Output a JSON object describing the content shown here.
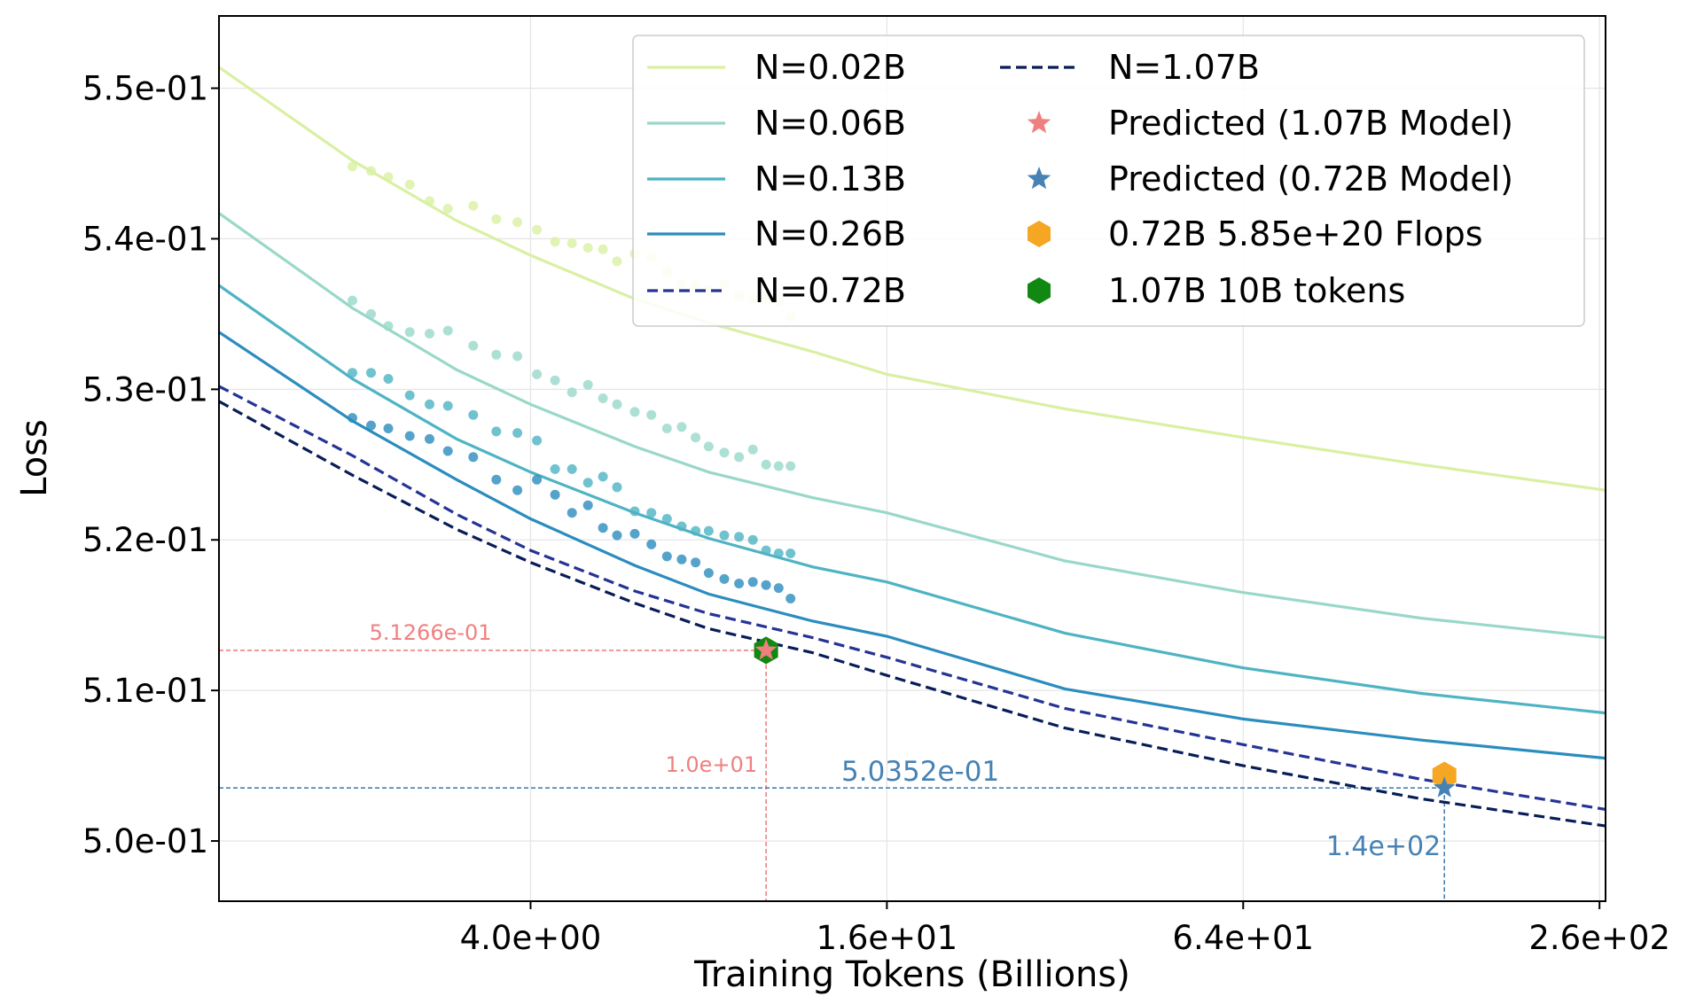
{
  "chart_data": {
    "type": "line",
    "xlabel": "Training Tokens (Billions)",
    "ylabel": "Loss",
    "x_scale": "log",
    "xlim": [
      1.19,
      262.1
    ],
    "ylim": [
      0.496,
      0.5548
    ],
    "x_ticks": [
      {
        "value": 4.0,
        "label": "4.0e+00"
      },
      {
        "value": 16.0,
        "label": "1.6e+01"
      },
      {
        "value": 64.0,
        "label": "6.4e+01"
      },
      {
        "value": 256.0,
        "label": "2.6e+02"
      }
    ],
    "y_ticks": [
      {
        "value": 0.5,
        "label": "5.0e-01"
      },
      {
        "value": 0.51,
        "label": "5.1e-01"
      },
      {
        "value": 0.52,
        "label": "5.2e-01"
      },
      {
        "value": 0.53,
        "label": "5.3e-01"
      },
      {
        "value": 0.54,
        "label": "5.4e-01"
      },
      {
        "value": 0.55,
        "label": "5.5e-01"
      }
    ],
    "grid": true,
    "legend_position": "top-right",
    "series": [
      {
        "name": "N=0.02B",
        "style": "solid",
        "color": "#d9f0a3",
        "fit_x": [
          1.19,
          2.0,
          3.0,
          4.0,
          6.0,
          8.0,
          12.0,
          16.0,
          32.0,
          64.0,
          128.0,
          262.1
        ],
        "fit_y": [
          0.5514,
          0.5452,
          0.5412,
          0.5389,
          0.536,
          0.5344,
          0.5325,
          0.531,
          0.5287,
          0.5268,
          0.525,
          0.5233
        ],
        "points_x": [
          2.0,
          2.15,
          2.3,
          2.5,
          2.7,
          2.9,
          3.2,
          3.5,
          3.8,
          4.1,
          4.4,
          4.7,
          5.0,
          5.3,
          5.6,
          6.0,
          6.4,
          6.8,
          7.2,
          7.6,
          8.0,
          8.5,
          9.0,
          9.5,
          10.0,
          10.5,
          11.0
        ],
        "points_y": [
          0.5448,
          0.5445,
          0.5441,
          0.5436,
          0.5425,
          0.542,
          0.5422,
          0.5413,
          0.5411,
          0.5406,
          0.5398,
          0.5397,
          0.5394,
          0.5393,
          0.5385,
          0.539,
          0.5388,
          0.5378,
          0.537,
          0.5369,
          0.5366,
          0.537,
          0.5362,
          0.536,
          0.5361,
          0.5358,
          0.5348
        ]
      },
      {
        "name": "N=0.06B",
        "style": "solid",
        "color": "#99d8c9",
        "fit_x": [
          1.19,
          2.0,
          3.0,
          4.0,
          6.0,
          8.0,
          12.0,
          16.0,
          32.0,
          64.0,
          128.0,
          262.1
        ],
        "fit_y": [
          0.5417,
          0.5354,
          0.5313,
          0.529,
          0.5262,
          0.5245,
          0.5228,
          0.5218,
          0.5186,
          0.5165,
          0.5148,
          0.5135
        ],
        "points_x": [
          2.0,
          2.15,
          2.3,
          2.5,
          2.7,
          2.9,
          3.2,
          3.5,
          3.8,
          4.1,
          4.4,
          4.7,
          5.0,
          5.3,
          5.6,
          6.0,
          6.4,
          6.8,
          7.2,
          7.6,
          8.0,
          8.5,
          9.0,
          9.5,
          10.0,
          10.5,
          11.0
        ],
        "points_y": [
          0.5359,
          0.535,
          0.5342,
          0.5338,
          0.5337,
          0.5339,
          0.5329,
          0.5323,
          0.5322,
          0.531,
          0.5306,
          0.5298,
          0.5303,
          0.5294,
          0.529,
          0.5285,
          0.5283,
          0.5274,
          0.5275,
          0.5268,
          0.5262,
          0.5258,
          0.5255,
          0.526,
          0.525,
          0.5249,
          0.5249
        ]
      },
      {
        "name": "N=0.13B",
        "style": "solid",
        "color": "#4eb3c3",
        "fit_x": [
          1.19,
          2.0,
          3.0,
          4.0,
          6.0,
          8.0,
          12.0,
          16.0,
          32.0,
          64.0,
          128.0,
          262.1
        ],
        "fit_y": [
          0.5369,
          0.5307,
          0.5267,
          0.5245,
          0.5218,
          0.5201,
          0.5182,
          0.5172,
          0.5138,
          0.5115,
          0.5098,
          0.5085
        ],
        "points_x": [
          2.0,
          2.15,
          2.3,
          2.5,
          2.7,
          2.9,
          3.2,
          3.5,
          3.8,
          4.1,
          4.4,
          4.7,
          5.0,
          5.3,
          5.6,
          6.0,
          6.4,
          6.8,
          7.2,
          7.6,
          8.0,
          8.5,
          9.0,
          9.5,
          10.0,
          10.5,
          11.0
        ],
        "points_y": [
          0.5311,
          0.5311,
          0.5307,
          0.5296,
          0.529,
          0.5289,
          0.5283,
          0.5272,
          0.5271,
          0.5266,
          0.5247,
          0.5247,
          0.5238,
          0.5242,
          0.5235,
          0.5219,
          0.5218,
          0.5214,
          0.5209,
          0.5206,
          0.5206,
          0.5203,
          0.5202,
          0.52,
          0.5193,
          0.5191,
          0.5191
        ]
      },
      {
        "name": "N=0.26B",
        "style": "solid",
        "color": "#2b8cbe",
        "fit_x": [
          1.19,
          2.0,
          3.0,
          4.0,
          6.0,
          8.0,
          12.0,
          16.0,
          32.0,
          64.0,
          128.0,
          262.1
        ],
        "fit_y": [
          0.5338,
          0.5279,
          0.524,
          0.5214,
          0.5183,
          0.5164,
          0.5146,
          0.5136,
          0.5101,
          0.5081,
          0.5067,
          0.5055
        ],
        "points_x": [
          2.0,
          2.15,
          2.3,
          2.5,
          2.7,
          2.9,
          3.2,
          3.5,
          3.8,
          4.1,
          4.4,
          4.7,
          5.0,
          5.3,
          5.6,
          6.0,
          6.4,
          6.8,
          7.2,
          7.6,
          8.0,
          8.5,
          9.0,
          9.5,
          10.0,
          10.5,
          11.0
        ],
        "points_y": [
          0.5281,
          0.5276,
          0.5274,
          0.5269,
          0.5267,
          0.5259,
          0.5255,
          0.524,
          0.5233,
          0.524,
          0.523,
          0.5218,
          0.5223,
          0.5208,
          0.5203,
          0.5204,
          0.5197,
          0.5189,
          0.5187,
          0.5185,
          0.5178,
          0.5174,
          0.5171,
          0.5172,
          0.517,
          0.5168,
          0.5161
        ]
      },
      {
        "name": "N=0.72B",
        "style": "dashed",
        "color": "#253494",
        "fit_x": [
          1.19,
          2.0,
          3.0,
          4.0,
          6.0,
          8.0,
          12.0,
          16.0,
          32.0,
          64.0,
          128.0,
          262.1
        ],
        "fit_y": [
          0.5302,
          0.5256,
          0.5217,
          0.5193,
          0.5166,
          0.5151,
          0.5135,
          0.5122,
          0.5088,
          0.5064,
          0.5041,
          0.5021
        ]
      },
      {
        "name": "N=1.07B",
        "style": "dashed",
        "color": "#081d58",
        "fit_x": [
          1.19,
          2.0,
          3.0,
          4.0,
          6.0,
          8.0,
          12.0,
          16.0,
          32.0,
          64.0,
          128.0,
          262.1
        ],
        "fit_y": [
          0.5292,
          0.5243,
          0.5207,
          0.5185,
          0.5158,
          0.5141,
          0.5125,
          0.511,
          0.5075,
          0.505,
          0.5028,
          0.501
        ]
      }
    ],
    "markers": [
      {
        "name": "Predicted (1.07B Model)",
        "shape": "star",
        "color": "#f08080",
        "x": 10.0,
        "y": 0.51266
      },
      {
        "name": "Predicted (0.72B Model)",
        "shape": "star",
        "color": "#4682b4",
        "x": 140.0,
        "y": 0.50352
      },
      {
        "name": "0.72B 5.85e+20 Flops",
        "shape": "hexagon",
        "color": "#f5a623",
        "x": 140.0,
        "y": 0.50435
      },
      {
        "name": "1.07B 10B tokens",
        "shape": "hexagon",
        "color": "#118811",
        "x": 10.0,
        "y": 0.51266
      }
    ],
    "annotations": [
      {
        "text": "5.1266e-01",
        "color": "#f08080",
        "x": 10.0,
        "y": 0.51266,
        "label_kind": "y"
      },
      {
        "text": "1.0e+01",
        "color": "#f08080",
        "x": 10.0,
        "y": 0.51266,
        "label_kind": "x"
      },
      {
        "text": "5.0352e-01",
        "color": "#4682b4",
        "x": 140.0,
        "y": 0.50352,
        "label_kind": "y"
      },
      {
        "text": "1.4e+02",
        "color": "#4682b4",
        "x": 140.0,
        "y": 0.50352,
        "label_kind": "x"
      }
    ]
  }
}
